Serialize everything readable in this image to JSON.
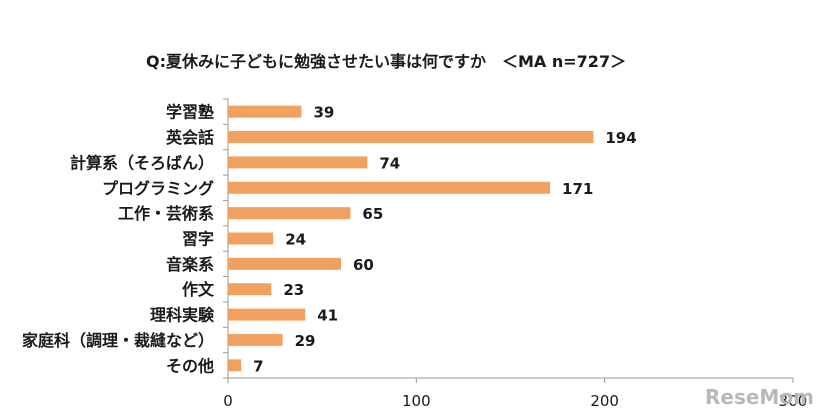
{
  "chart_data": {
    "type": "bar",
    "orientation": "horizontal",
    "title": "Q:夏休みに子どもに勉強させたい事は何ですか　＜MA n=727＞",
    "categories": [
      "学習塾",
      "英会話",
      "計算系（そろばん）",
      "プログラミング",
      "工作・芸術系",
      "習字",
      "音楽系",
      "作文",
      "理科実験",
      "家庭科（調理・裁縫など）",
      "その他"
    ],
    "values": [
      39,
      194,
      74,
      171,
      65,
      24,
      60,
      23,
      41,
      29,
      7
    ],
    "xlim": [
      0,
      300
    ],
    "xticks": [
      "0",
      "100",
      "200",
      "300"
    ],
    "xlabel": "",
    "ylabel": "",
    "grid": false,
    "bar_color": "#f0a160"
  },
  "watermark": "ReseMom"
}
